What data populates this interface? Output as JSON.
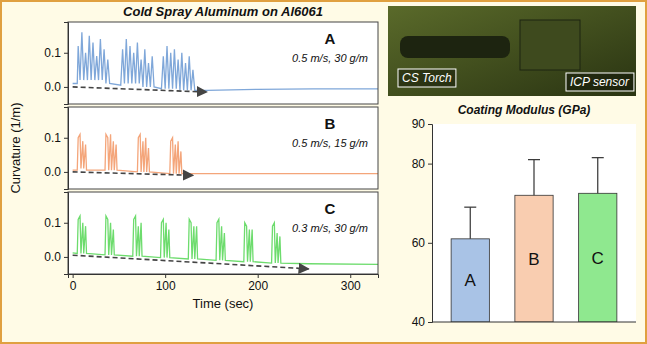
{
  "chart_data": [
    {
      "type": "line",
      "title": "Cold Spray Aluminum on Al6061",
      "annotations": [
        "A",
        "0.5 m/s, 30 g/m"
      ],
      "xlim": [
        -5,
        330
      ],
      "ylim": [
        -0.05,
        0.19
      ],
      "yticks": [
        {
          "value": 0,
          "label": "0.0"
        },
        {
          "value": 0.1,
          "label": "0.1"
        }
      ],
      "tick_labels": "y",
      "series": [
        {
          "color": "#7fa7d9",
          "x": [
            0,
            5,
            6,
            8,
            10,
            12,
            14,
            16,
            18,
            20,
            22,
            24,
            26,
            28,
            30,
            32,
            34,
            36,
            38,
            40,
            52,
            54,
            56,
            58,
            60,
            62,
            64,
            66,
            68,
            70,
            72,
            74,
            76,
            78,
            80,
            82,
            84,
            86,
            88,
            96,
            98,
            100,
            102,
            104,
            106,
            108,
            110,
            112,
            114,
            116,
            118,
            120,
            122,
            124,
            126,
            128,
            130,
            132,
            145,
            200,
            260,
            350
          ],
          "values": [
            0.01,
            0.01,
            0.12,
            0.02,
            0.16,
            0.02,
            0.1,
            0.02,
            0.15,
            0.02,
            0.13,
            0.02,
            0.09,
            0.02,
            0.14,
            0.02,
            0.11,
            0.01,
            0.08,
            0.01,
            0.005,
            0.11,
            0.01,
            0.14,
            0.01,
            0.12,
            0.01,
            0.1,
            0.01,
            0.13,
            0.01,
            0.08,
            0.0,
            0.11,
            0.0,
            0.07,
            0.0,
            0.09,
            0.0,
            -0.005,
            0.09,
            -0.005,
            0.12,
            -0.005,
            0.1,
            -0.005,
            0.11,
            -0.005,
            0.08,
            -0.01,
            0.1,
            -0.01,
            0.07,
            -0.01,
            0.09,
            -0.01,
            0.05,
            -0.01,
            -0.01,
            -0.007,
            -0.006,
            -0.006
          ]
        },
        {
          "color": "#444444",
          "line_style": "dashed",
          "marker": "arrow",
          "x": [
            0,
            145
          ],
          "values": [
            0.0,
            -0.015
          ]
        }
      ]
    },
    {
      "type": "line",
      "annotations": [
        "B",
        "0.5 m/s, 15 g/m"
      ],
      "y_label": "Curvature (1/m)",
      "xlim": [
        -5,
        330
      ],
      "ylim": [
        -0.05,
        0.19
      ],
      "yticks": [
        {
          "value": 0,
          "label": "0.0"
        },
        {
          "value": 0.1,
          "label": "0.1"
        }
      ],
      "tick_labels": "y",
      "series": [
        {
          "color": "#f4a57a",
          "x": [
            0,
            5,
            6,
            8,
            9,
            11,
            12,
            14,
            15,
            35,
            36,
            38,
            39,
            41,
            42,
            44,
            45,
            47,
            48,
            70,
            71,
            73,
            74,
            76,
            77,
            79,
            80,
            82,
            83,
            105,
            106,
            108,
            109,
            111,
            112,
            114,
            115,
            117,
            118,
            135,
            200,
            350
          ],
          "values": [
            0.005,
            0.005,
            0.1,
            0.11,
            0.01,
            0.09,
            0.01,
            0.08,
            0.005,
            0.005,
            0.11,
            0.1,
            0.005,
            0.11,
            0.005,
            0.09,
            0.005,
            0.08,
            0.005,
            0.0,
            0.1,
            0.11,
            0.0,
            0.09,
            0.0,
            0.1,
            0.0,
            0.07,
            0.0,
            -0.005,
            0.09,
            0.1,
            -0.005,
            0.08,
            -0.005,
            0.09,
            -0.005,
            0.06,
            -0.005,
            -0.005,
            -0.005,
            -0.005
          ]
        },
        {
          "color": "#444444",
          "line_style": "dashed",
          "marker": "arrow",
          "x": [
            0,
            130
          ],
          "values": [
            0.0,
            -0.01
          ]
        }
      ]
    },
    {
      "type": "line",
      "annotations": [
        "C",
        "0.3 m/s, 30 g/m"
      ],
      "x_label": "Time (sec)",
      "xlim": [
        -5,
        330
      ],
      "ylim": [
        -0.05,
        0.19
      ],
      "xticks": [
        0,
        100,
        200,
        300
      ],
      "yticks": [
        {
          "value": 0,
          "label": "0.0"
        },
        {
          "value": 0.1,
          "label": "0.1"
        }
      ],
      "tick_labels": true,
      "series": [
        {
          "color": "#6ddc6d",
          "x": [
            0,
            5,
            6,
            8,
            9,
            11,
            12,
            14,
            15,
            35,
            36,
            38,
            39,
            41,
            42,
            44,
            45,
            65,
            66,
            68,
            69,
            71,
            72,
            74,
            75,
            95,
            96,
            98,
            99,
            101,
            102,
            104,
            105,
            125,
            126,
            128,
            129,
            131,
            132,
            134,
            135,
            155,
            156,
            158,
            159,
            161,
            162,
            164,
            165,
            185,
            186,
            188,
            189,
            191,
            192,
            194,
            195,
            215,
            216,
            218,
            219,
            221,
            222,
            224,
            225,
            255,
            350
          ],
          "values": [
            0.012,
            0.01,
            0.11,
            0.12,
            0.01,
            0.1,
            0.01,
            0.09,
            0.01,
            0.006,
            0.12,
            0.11,
            0.006,
            0.1,
            0.006,
            0.08,
            0.006,
            0.002,
            0.11,
            0.12,
            0.002,
            0.09,
            0.002,
            0.1,
            0.002,
            -0.002,
            0.1,
            0.11,
            -0.002,
            0.1,
            -0.002,
            0.08,
            -0.002,
            -0.006,
            0.11,
            0.1,
            -0.006,
            0.09,
            -0.006,
            0.09,
            -0.006,
            -0.01,
            0.1,
            0.11,
            -0.01,
            0.09,
            -0.01,
            0.07,
            -0.01,
            -0.014,
            0.1,
            0.09,
            -0.014,
            0.08,
            -0.014,
            0.08,
            -0.014,
            -0.018,
            0.09,
            0.1,
            -0.018,
            0.07,
            -0.018,
            0.06,
            -0.018,
            -0.02,
            -0.022
          ]
        },
        {
          "color": "#444444",
          "line_style": "dashed",
          "marker": "arrow",
          "x": [
            0,
            255
          ],
          "values": [
            0.005,
            -0.035
          ]
        }
      ]
    },
    {
      "type": "bar",
      "title": "Coating Modulus (GPa)",
      "categories": [
        "A",
        "B",
        "C"
      ],
      "values": [
        61,
        72,
        72.5
      ],
      "errors": [
        8,
        9,
        9
      ],
      "colors": [
        "#a9c3e6",
        "#f9cdb0",
        "#8fe88f"
      ],
      "ylim": [
        40,
        90
      ],
      "yticks": [
        40,
        60,
        80,
        90
      ],
      "tick_labels": "y"
    }
  ],
  "photo": {
    "labels": [
      "CS Torch",
      "ICP sensor"
    ]
  }
}
